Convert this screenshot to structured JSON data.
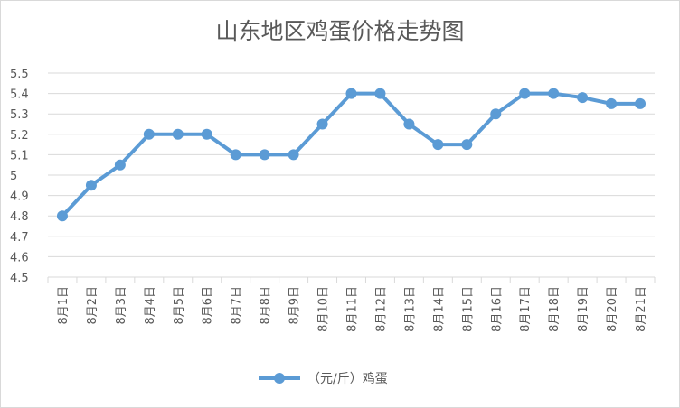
{
  "chart_data": {
    "type": "line",
    "title": "山东地区鸡蛋价格走势图",
    "categories": [
      "8月1日",
      "8月2日",
      "8月3日",
      "8月4日",
      "8月5日",
      "8月6日",
      "8月7日",
      "8月8日",
      "8月9日",
      "8月10日",
      "8月11日",
      "8月12日",
      "8月13日",
      "8月14日",
      "8月15日",
      "8月16日",
      "8月17日",
      "8月18日",
      "8月19日",
      "8月20日",
      "8月21日"
    ],
    "series": [
      {
        "name": "（元/斤）鸡蛋",
        "color": "#5b9bd5",
        "values": [
          4.8,
          4.95,
          5.05,
          5.2,
          5.2,
          5.2,
          5.1,
          5.1,
          5.1,
          5.25,
          5.4,
          5.4,
          5.25,
          5.15,
          5.15,
          5.3,
          5.4,
          5.4,
          5.38,
          5.35,
          5.35
        ]
      }
    ],
    "ylim": [
      4.5,
      5.5
    ],
    "yticks": [
      "4.5",
      "4.6",
      "4.7",
      "4.8",
      "4.9",
      "5",
      "5.1",
      "5.2",
      "5.3",
      "5.4",
      "5.5"
    ],
    "grid": true,
    "legend_position": "bottom"
  }
}
